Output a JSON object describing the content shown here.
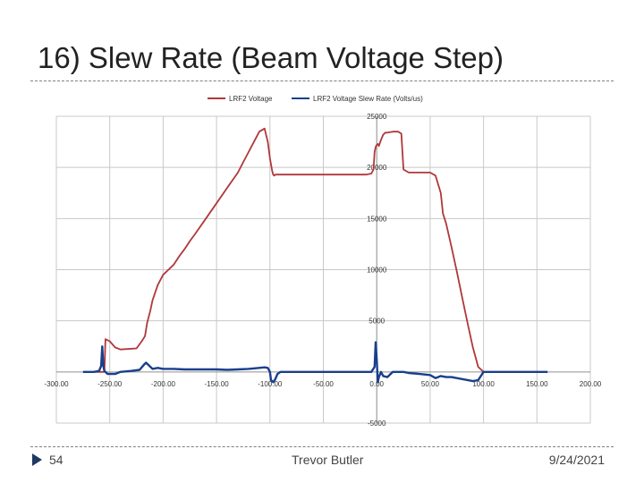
{
  "slide": {
    "title": "16) Slew Rate (Beam Voltage Step)",
    "page_number": "54",
    "author": "Trevor Butler",
    "date": "9/24/2021"
  },
  "colors": {
    "voltage": "#b0373a",
    "slew": "#1a3f8c",
    "grid": "#c8c8c8"
  },
  "chart_data": {
    "type": "line",
    "title": "",
    "xlabel": "",
    "ylabel": "",
    "xlim": [
      -300,
      200
    ],
    "ylim": [
      -5000,
      25000
    ],
    "x_ticks": [
      -300,
      -250,
      -200,
      -150,
      -100,
      -50,
      0,
      50,
      100,
      150,
      200
    ],
    "x_tick_labels": [
      "-300.00",
      "-250.00",
      "-200.00",
      "-150.00",
      "-100.00",
      "-50.00",
      "0.00",
      "50.00",
      "100.00",
      "150.00",
      "200.00"
    ],
    "y_ticks": [
      -5000,
      0,
      5000,
      10000,
      15000,
      20000,
      25000
    ],
    "y_tick_labels": [
      "-5000",
      "",
      "5000",
      "10000",
      "15000",
      "20000",
      "25000"
    ],
    "grid": true,
    "legend_position": "top-center",
    "series": [
      {
        "name": "LRF2 Voltage",
        "x": [
          -265,
          -255,
          -254,
          -250,
          -245,
          -240,
          -225,
          -220,
          -217,
          -215,
          -212,
          -210,
          -205,
          -200,
          -195,
          -190,
          -185,
          -180,
          -175,
          -170,
          -160,
          -150,
          -140,
          -130,
          -125,
          -120,
          -115,
          -110,
          -105,
          -102,
          -100,
          -98,
          -97,
          -96,
          -95,
          -90,
          -80,
          -70,
          -60,
          -50,
          -40,
          -30,
          -20,
          -10,
          -5,
          -3,
          -2,
          -1,
          0,
          1,
          2,
          4,
          6,
          8,
          10,
          15,
          20,
          23,
          25,
          30,
          40,
          50,
          55,
          60,
          62,
          65,
          70,
          75,
          80,
          85,
          90,
          95,
          100
        ],
        "y": [
          0,
          0,
          3200,
          3000,
          2400,
          2200,
          2300,
          3000,
          3500,
          4800,
          6000,
          7000,
          8500,
          9500,
          10000,
          10500,
          11300,
          12000,
          12800,
          13500,
          15000,
          16500,
          18000,
          19500,
          20500,
          21500,
          22500,
          23500,
          23800,
          22500,
          20900,
          19700,
          19300,
          19200,
          19300,
          19300,
          19300,
          19300,
          19300,
          19300,
          19300,
          19300,
          19300,
          19300,
          19400,
          19800,
          21500,
          22000,
          22200,
          22300,
          22100,
          22700,
          23200,
          23400,
          23400,
          23500,
          23500,
          23300,
          19800,
          19500,
          19500,
          19500,
          19200,
          17500,
          15500,
          14500,
          12200,
          9800,
          7300,
          4800,
          2400,
          500,
          0
        ]
      },
      {
        "name": "LRF2 Voltage Slew Rate (Volts/us)",
        "x": [
          -275,
          -265,
          -260,
          -258,
          -257,
          -256,
          -255,
          -254,
          -252,
          -250,
          -245,
          -240,
          -230,
          -222,
          -218,
          -216,
          -214,
          -212,
          -210,
          -205,
          -200,
          -190,
          -180,
          -170,
          -160,
          -150,
          -140,
          -130,
          -120,
          -110,
          -105,
          -102,
          -100,
          -99,
          -97,
          -95,
          -93,
          -90,
          -85,
          -80,
          -70,
          -60,
          -50,
          -40,
          -30,
          -20,
          -10,
          -5,
          -2,
          -1,
          0,
          1,
          2,
          4,
          6,
          10,
          15,
          20,
          25,
          30,
          40,
          50,
          55,
          60,
          65,
          70,
          80,
          90,
          95,
          100,
          110,
          120,
          130,
          140,
          150,
          160
        ],
        "y": [
          0,
          0,
          100,
          600,
          2500,
          600,
          100,
          0,
          -200,
          -200,
          -200,
          0,
          100,
          200,
          700,
          900,
          700,
          500,
          300,
          400,
          300,
          300,
          250,
          250,
          250,
          250,
          200,
          250,
          300,
          400,
          450,
          400,
          0,
          -800,
          -1000,
          -700,
          -200,
          0,
          0,
          0,
          0,
          0,
          0,
          0,
          0,
          0,
          0,
          0,
          500,
          2900,
          1200,
          -1000,
          -500,
          0,
          -400,
          -500,
          0,
          0,
          0,
          -100,
          -200,
          -300,
          -600,
          -400,
          -500,
          -500,
          -700,
          -900,
          -800,
          0,
          0,
          0,
          0,
          0,
          0,
          0
        ]
      }
    ]
  }
}
